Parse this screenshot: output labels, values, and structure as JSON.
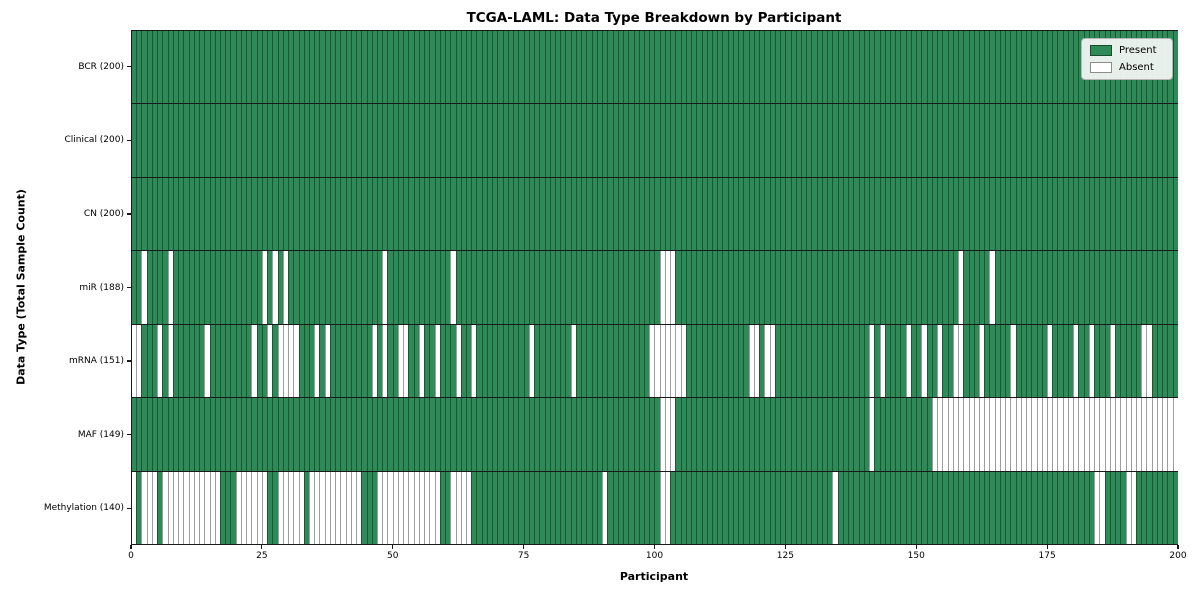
{
  "chart_data": {
    "type": "heatmap",
    "title": "TCGA-LAML: Data Type Breakdown by Participant",
    "xlabel": "Participant",
    "ylabel": "Data Type (Total Sample Count)",
    "legend": {
      "present": "Present",
      "absent": "Absent"
    },
    "legend_position": "upper right",
    "colors": {
      "present": "#2e8b57",
      "absent": "#ffffff"
    },
    "grid": false,
    "x_range": [
      0,
      200
    ],
    "x_ticks": [
      0,
      25,
      50,
      75,
      100,
      125,
      150,
      175,
      200
    ],
    "n_participants": 200,
    "cell_states": [
      "present",
      "absent"
    ],
    "rows": [
      {
        "data_type": "BCR",
        "label": "BCR (200)",
        "present_count": 200,
        "absent_participants": []
      },
      {
        "data_type": "Clinical",
        "label": "Clinical (200)",
        "present_count": 200,
        "absent_participants": []
      },
      {
        "data_type": "CN",
        "label": "CN (200)",
        "present_count": 200,
        "absent_participants": []
      },
      {
        "data_type": "miR",
        "label": "miR (188)",
        "present_count": 188,
        "absent_participants": [
          2,
          7,
          25,
          27,
          29,
          48,
          61,
          101,
          102,
          103,
          158,
          164
        ]
      },
      {
        "data_type": "mRNA",
        "label": "mRNA (151)",
        "present_count": 151,
        "absent_participants": [
          0,
          1,
          5,
          7,
          14,
          23,
          26,
          28,
          29,
          30,
          31,
          35,
          37,
          46,
          48,
          51,
          52,
          55,
          58,
          62,
          65,
          76,
          84,
          99,
          100,
          101,
          102,
          103,
          104,
          105,
          118,
          119,
          121,
          122,
          141,
          143,
          148,
          151,
          154,
          157,
          158,
          162,
          168,
          175,
          180,
          183,
          187,
          193,
          194
        ]
      },
      {
        "data_type": "MAF",
        "label": "MAF (149)",
        "present_count": 149,
        "absent_participants": [
          101,
          102,
          103,
          141,
          153,
          154,
          155,
          156,
          157,
          158,
          159,
          160,
          161,
          162,
          163,
          164,
          165,
          166,
          167,
          168,
          169,
          170,
          171,
          172,
          173,
          174,
          175,
          176,
          177,
          178,
          179,
          180,
          181,
          182,
          183,
          184,
          185,
          186,
          187,
          188,
          189,
          190,
          191,
          192,
          193,
          194,
          195,
          196,
          197,
          198,
          199
        ]
      },
      {
        "data_type": "Methylation",
        "label": "Methylation (140)",
        "present_count": 140,
        "absent_participants": [
          0,
          2,
          3,
          4,
          6,
          7,
          8,
          9,
          10,
          11,
          12,
          13,
          14,
          15,
          16,
          20,
          21,
          22,
          23,
          24,
          25,
          28,
          29,
          30,
          31,
          32,
          34,
          35,
          36,
          37,
          38,
          39,
          40,
          41,
          42,
          43,
          47,
          48,
          49,
          50,
          51,
          52,
          53,
          54,
          55,
          56,
          57,
          58,
          61,
          62,
          63,
          64,
          90,
          101,
          102,
          134,
          184,
          185,
          190,
          191
        ]
      }
    ]
  }
}
